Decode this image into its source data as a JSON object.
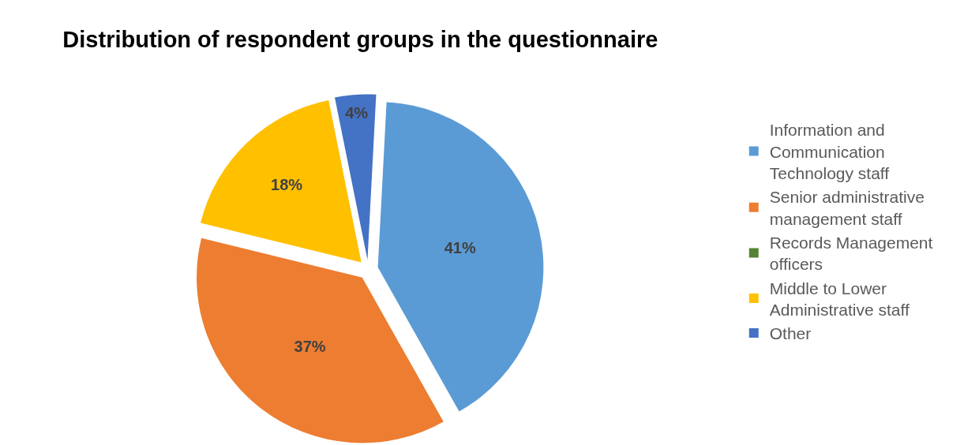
{
  "chart_data": {
    "type": "pie",
    "title": "Distribution of respondent groups in the questionnaire",
    "categories": [
      "Information and Communication Technology staff",
      "Senior administrative management staff",
      "Records Management officers",
      "Middle to Lower Administrative staff",
      "Other"
    ],
    "values": [
      41,
      37,
      0,
      18,
      4
    ],
    "colors": [
      "#5b9bd5",
      "#ed7d31",
      "#548235",
      "#ffc000",
      "#4472c4"
    ],
    "value_labels": [
      "41%",
      "37%",
      null,
      "18%",
      "4%"
    ],
    "legend": "right"
  }
}
